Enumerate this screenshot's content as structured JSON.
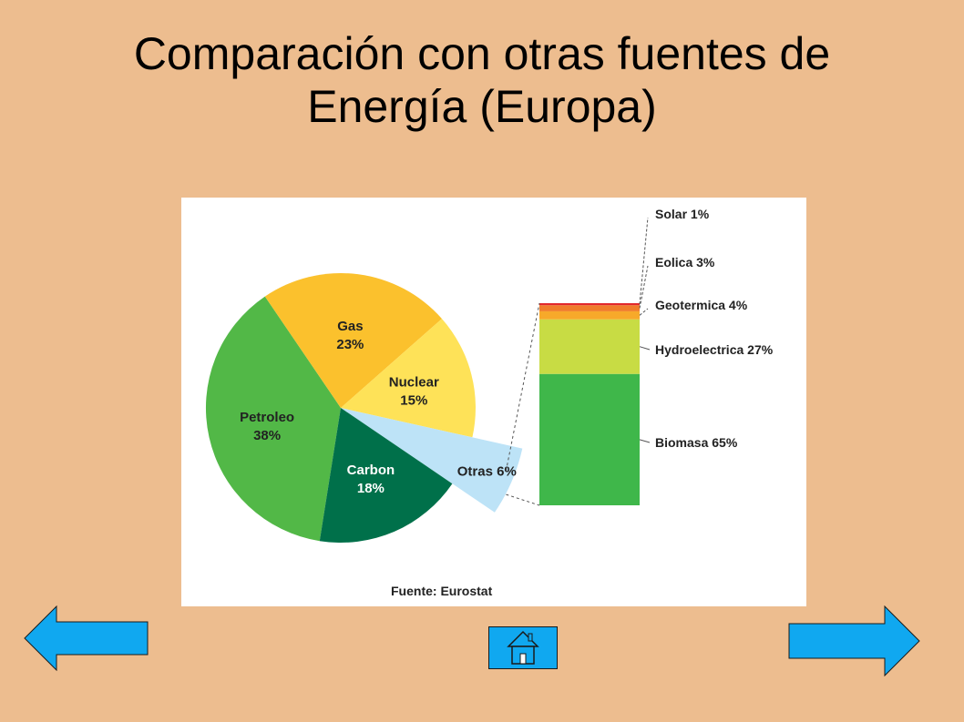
{
  "slide": {
    "title_line1": "Comparación con otras fuentes de",
    "title_line2": "Energía (Europa)"
  },
  "chart_data": {
    "type": "pie",
    "slices": [
      {
        "name": "Petroleo",
        "label": "38%",
        "value": 38,
        "color": "#52B847"
      },
      {
        "name": "Gas",
        "label": "23%",
        "value": 23,
        "color": "#FBC12D"
      },
      {
        "name": "Nuclear",
        "label": "15%",
        "value": 15,
        "color": "#FEE258"
      },
      {
        "name": "Otras",
        "label": "6%",
        "value": 6,
        "color": "#BDE3F7"
      },
      {
        "name": "Carbon",
        "label": "18%",
        "value": 18,
        "color": "#00704A"
      }
    ],
    "breakdown": {
      "of": "Otras",
      "type": "stacked-bar",
      "segments": [
        {
          "name": "Biomasa",
          "label": "Biomasa 65%",
          "value": 65,
          "color": "#3FB74A"
        },
        {
          "name": "Hydroelectrica",
          "label": "Hydroelectrica 27%",
          "value": 27,
          "color": "#C8DC44"
        },
        {
          "name": "Geotermica",
          "label": "Geotermica 4%",
          "value": 4,
          "color": "#F7A92A"
        },
        {
          "name": "Eolica",
          "label": "Eolica 3%",
          "value": 3,
          "color": "#F07C2A"
        },
        {
          "name": "Solar",
          "label": "Solar 1%",
          "value": 1,
          "color": "#E2282B"
        }
      ]
    },
    "source": "Fuente: Eurostat"
  },
  "navigation": {
    "back_icon": "left-arrow-icon",
    "home_icon": "house-icon",
    "next_icon": "right-arrow-icon",
    "arrow_color": "#10A8F0"
  }
}
